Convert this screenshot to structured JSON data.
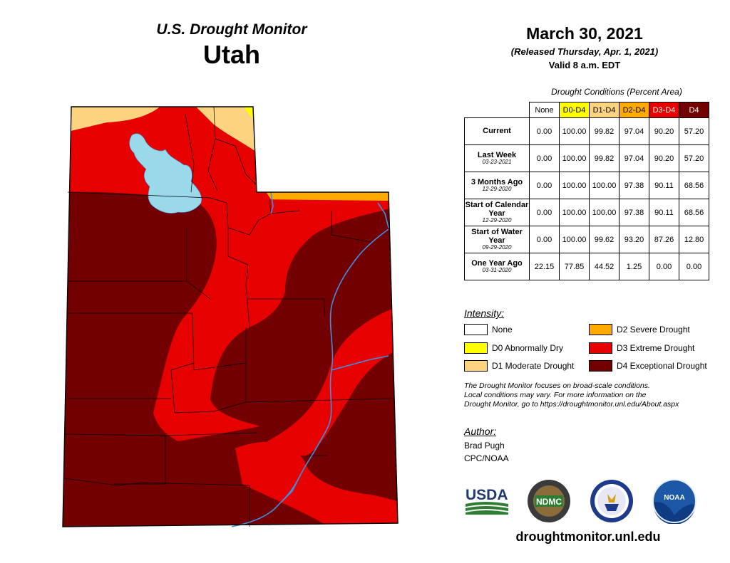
{
  "header": {
    "supertitle": "U.S. Drought Monitor",
    "state": "Utah",
    "date": "March 30, 2021",
    "released": "(Released Thursday, Apr. 1, 2021)",
    "valid": "Valid 8 a.m. EDT"
  },
  "table": {
    "caption": "Drought Conditions (Percent Area)",
    "columns": [
      {
        "label": "None",
        "color": "#ffffff"
      },
      {
        "label": "D0-D4",
        "color": "#ffff00"
      },
      {
        "label": "D1-D4",
        "color": "#fcd37f"
      },
      {
        "label": "D2-D4",
        "color": "#ffaa00"
      },
      {
        "label": "D3-D4",
        "color": "#e60000"
      },
      {
        "label": "D4",
        "color": "#730000"
      }
    ],
    "rows": [
      {
        "label": "Current",
        "date": "",
        "values": [
          "0.00",
          "100.00",
          "99.82",
          "97.04",
          "90.20",
          "57.20"
        ]
      },
      {
        "label": "Last Week",
        "date": "03-23-2021",
        "values": [
          "0.00",
          "100.00",
          "99.82",
          "97.04",
          "90.20",
          "57.20"
        ]
      },
      {
        "label": "3 Months Ago",
        "date": "12-29-2020",
        "values": [
          "0.00",
          "100.00",
          "100.00",
          "97.38",
          "90.11",
          "68.56"
        ]
      },
      {
        "label": "Start of Calendar Year",
        "date": "12-29-2020",
        "values": [
          "0.00",
          "100.00",
          "100.00",
          "97.38",
          "90.11",
          "68.56"
        ]
      },
      {
        "label": "Start of Water Year",
        "date": "09-29-2020",
        "values": [
          "0.00",
          "100.00",
          "99.62",
          "93.20",
          "87.26",
          "12.80"
        ]
      },
      {
        "label": "One Year Ago",
        "date": "03-31-2020",
        "values": [
          "22.15",
          "77.85",
          "44.52",
          "1.25",
          "0.00",
          "0.00"
        ]
      }
    ]
  },
  "legend": {
    "title": "Intensity:",
    "items": [
      {
        "label": "None",
        "color": "#ffffff"
      },
      {
        "label": "D0 Abnormally Dry",
        "color": "#ffff00"
      },
      {
        "label": "D1 Moderate Drought",
        "color": "#fcd37f"
      },
      {
        "label": "D2 Severe Drought",
        "color": "#ffaa00"
      },
      {
        "label": "D3 Extreme Drought",
        "color": "#e60000"
      },
      {
        "label": "D4 Exceptional Drought",
        "color": "#730000"
      }
    ]
  },
  "note": {
    "line1": "The Drought Monitor focuses on broad-scale conditions.",
    "line2": "Local conditions may vary. For more information on the",
    "line3": "Drought Monitor, go to https://droughtmonitor.unl.edu/About.aspx"
  },
  "author": {
    "title": "Author:",
    "name": "Brad Pugh",
    "org": "CPC/NOAA"
  },
  "logos": {
    "usda": "USDA",
    "ndmc": "NDMC",
    "noaa": "NOAA"
  },
  "website": "droughtmonitor.unl.edu",
  "colors": {
    "lake": "#99d9ea",
    "river": "#3f8fe0",
    "county_lines": "#000000"
  }
}
